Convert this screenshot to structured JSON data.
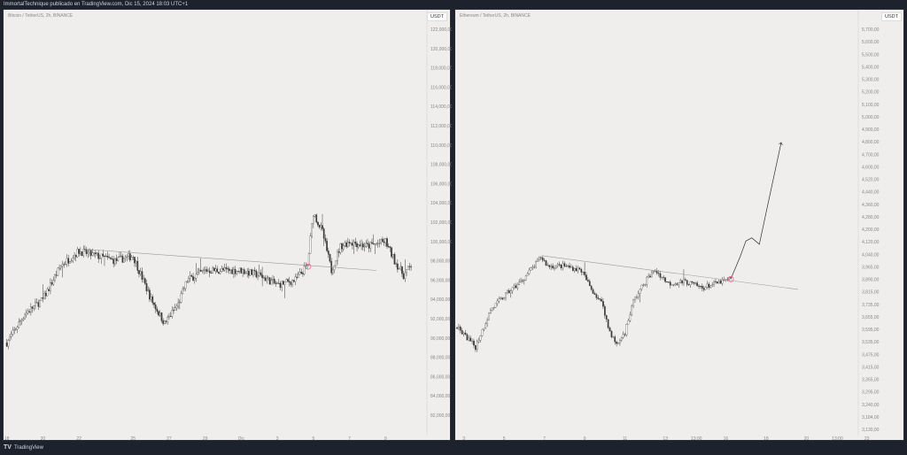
{
  "header": {
    "title": "ImmortalTechnique publicado en TradingView.com, Dic 15, 2024 18:03 UTC+1"
  },
  "footer": {
    "brand": "TradingView",
    "logo_icon": "tradingview-logo-icon"
  },
  "colors": {
    "background": "#efeeec",
    "frame": "#1e222d",
    "candle": "#3a3a3a",
    "trendline": "#9a9a9a",
    "marker": "#f06292"
  },
  "chart_data": [
    {
      "type": "candlestick",
      "title": "Bitcoin / TetherUS, 2h, BINANCE",
      "currency": "USDT",
      "interval": "2h",
      "y_scale": "linear",
      "ylim": [
        82000,
        122000
      ],
      "y_ticks": [
        "122,000,00",
        "120,000,00",
        "118,000,00",
        "116,000,00",
        "114,000,00",
        "112,000,00",
        "110,000,00",
        "108,000,00",
        "106,000,00",
        "104,000,00",
        "102,000,00",
        "100,000,00",
        "98,000,00",
        "96,000,00",
        "94,000,00",
        "92,000,00",
        "90,000,00",
        "88,000,00",
        "86,000,00",
        "84,000,00",
        "82,000,00"
      ],
      "x_ticks": [
        {
          "label": "18",
          "date": "2024-11-18"
        },
        {
          "label": "20",
          "date": "2024-11-20"
        },
        {
          "label": "22",
          "date": "2024-11-22"
        },
        {
          "label": "25",
          "date": "2024-11-25"
        },
        {
          "label": "27",
          "date": "2024-11-27"
        },
        {
          "label": "29",
          "date": "2024-11-29"
        },
        {
          "label": "Dic",
          "date": "2024-12-01"
        },
        {
          "label": "3",
          "date": "2024-12-03"
        },
        {
          "label": "5",
          "date": "2024-12-05"
        },
        {
          "label": "7",
          "date": "2024-12-07"
        },
        {
          "label": "9",
          "date": "2024-12-09"
        }
      ],
      "xlim": [
        "2024-11-17T22:00",
        "2024-12-11T00:00"
      ],
      "price_path": [
        [
          "2024-11-18T00:00",
          89500
        ],
        [
          "2024-11-19T00:00",
          92500
        ],
        [
          "2024-11-20T00:00",
          94000
        ],
        [
          "2024-11-21T00:00",
          97500
        ],
        [
          "2024-11-22T00:00",
          99000
        ],
        [
          "2024-11-23T00:00",
          98500
        ],
        [
          "2024-11-24T00:00",
          98000
        ],
        [
          "2024-11-25T00:00",
          98500
        ],
        [
          "2024-11-26T00:00",
          94000
        ],
        [
          "2024-11-26T18:00",
          91500
        ],
        [
          "2024-11-27T12:00",
          93500
        ],
        [
          "2024-11-28T00:00",
          96000
        ],
        [
          "2024-11-29T00:00",
          97000
        ],
        [
          "2024-11-30T00:00",
          97000
        ],
        [
          "2024-12-01T00:00",
          97000
        ],
        [
          "2024-12-02T00:00",
          96500
        ],
        [
          "2024-12-03T00:00",
          95500
        ],
        [
          "2024-12-04T00:00",
          96000
        ],
        [
          "2024-12-04T16:00",
          97500
        ],
        [
          "2024-12-05T00:00",
          103000
        ],
        [
          "2024-12-05T12:00",
          101000
        ],
        [
          "2024-12-06T00:00",
          97000
        ],
        [
          "2024-12-06T12:00",
          99500
        ],
        [
          "2024-12-07T00:00",
          100000
        ],
        [
          "2024-12-08T00:00",
          99500
        ],
        [
          "2024-12-09T00:00",
          100000
        ],
        [
          "2024-12-09T12:00",
          98000
        ],
        [
          "2024-12-10T00:00",
          96500
        ],
        [
          "2024-12-10T10:00",
          97500
        ]
      ],
      "trendline": [
        [
          "2024-11-22T08:00",
          99200
        ],
        [
          "2024-12-08T12:00",
          97000
        ]
      ],
      "marker": [
        "2024-12-04T17:00",
        97400
      ]
    },
    {
      "type": "candlestick",
      "title": "Ethereum / TetherUS, 2h, BINANCE",
      "currency": "USDT",
      "interval": "2h",
      "y_scale": "log",
      "ylim": [
        3130,
        5700
      ],
      "y_ticks": [
        "5,700,00",
        "5,600,00",
        "5,500,00",
        "5,400,00",
        "5,300,00",
        "5,200,00",
        "5,100,00",
        "5,000,00",
        "4,900,00",
        "4,800,00",
        "4,700,00",
        "4,600,00",
        "4,520,00",
        "4,440,00",
        "4,360,00",
        "4,280,00",
        "4,200,00",
        "4,120,00",
        "4,040,00",
        "3,965,00",
        "3,890,00",
        "3,815,00",
        "3,735,00",
        "3,655,00",
        "3,595,00",
        "3,535,00",
        "3,475,00",
        "3,415,00",
        "3,355,00",
        "3,295,00",
        "3,240,00",
        "3,184,00",
        "3,130,00"
      ],
      "x_ticks": [
        {
          "label": "3",
          "date": "2024-12-03"
        },
        {
          "label": "5",
          "date": "2024-12-05"
        },
        {
          "label": "7",
          "date": "2024-12-07"
        },
        {
          "label": "9",
          "date": "2024-12-09"
        },
        {
          "label": "11",
          "date": "2024-12-11"
        },
        {
          "label": "13",
          "date": "2024-12-13"
        },
        {
          "label": "13:00",
          "date": "2024-12-14T13:00"
        },
        {
          "label": "16",
          "date": "2024-12-16"
        },
        {
          "label": "18",
          "date": "2024-12-18"
        },
        {
          "label": "20",
          "date": "2024-12-20"
        },
        {
          "label": "13:00",
          "date": "2024-12-21T13:00"
        },
        {
          "label": "23",
          "date": "2024-12-23"
        }
      ],
      "xlim": [
        "2024-12-02T16:00",
        "2024-12-23T12:00"
      ],
      "price_path": [
        [
          "2024-12-02T16:00",
          3645
        ],
        [
          "2024-12-03T14:00",
          3541
        ],
        [
          "2024-12-04T08:00",
          3743
        ],
        [
          "2024-12-05T05:00",
          3843
        ],
        [
          "2024-12-05T20:00",
          3905
        ],
        [
          "2024-12-06T12:00",
          3998
        ],
        [
          "2024-12-06T20:00",
          4052
        ],
        [
          "2024-12-07T04:00",
          3998
        ],
        [
          "2024-12-08T00:00",
          3998
        ],
        [
          "2024-12-08T20:00",
          3972
        ],
        [
          "2024-12-09T07:00",
          3869
        ],
        [
          "2024-12-09T22:00",
          3768
        ],
        [
          "2024-12-10T04:00",
          3645
        ],
        [
          "2024-12-10T14:00",
          3550
        ],
        [
          "2024-12-11T00:00",
          3621
        ],
        [
          "2024-12-11T10:00",
          3792
        ],
        [
          "2024-12-12T02:00",
          3920
        ],
        [
          "2024-12-12T12:00",
          3972
        ],
        [
          "2024-12-13T04:00",
          3894
        ],
        [
          "2024-12-14T00:00",
          3905
        ],
        [
          "2024-12-14T20:00",
          3869
        ],
        [
          "2024-12-15T12:00",
          3894
        ],
        [
          "2024-12-16T06:00",
          3920
        ]
      ],
      "projection": [
        [
          "2024-12-16T06:00",
          3920
        ],
        [
          "2024-12-16T17:00",
          4052
        ],
        [
          "2024-12-17T00:00",
          4150
        ],
        [
          "2024-12-17T07:00",
          4170
        ],
        [
          "2024-12-17T16:00",
          4130
        ],
        [
          "2024-12-18T02:00",
          4380
        ],
        [
          "2024-12-18T18:00",
          4810
        ]
      ],
      "trendline": [
        [
          "2024-12-06T21:00",
          4060
        ],
        [
          "2024-12-19T14:00",
          3860
        ]
      ],
      "marker": [
        "2024-12-16T06:00",
        3920
      ]
    }
  ]
}
